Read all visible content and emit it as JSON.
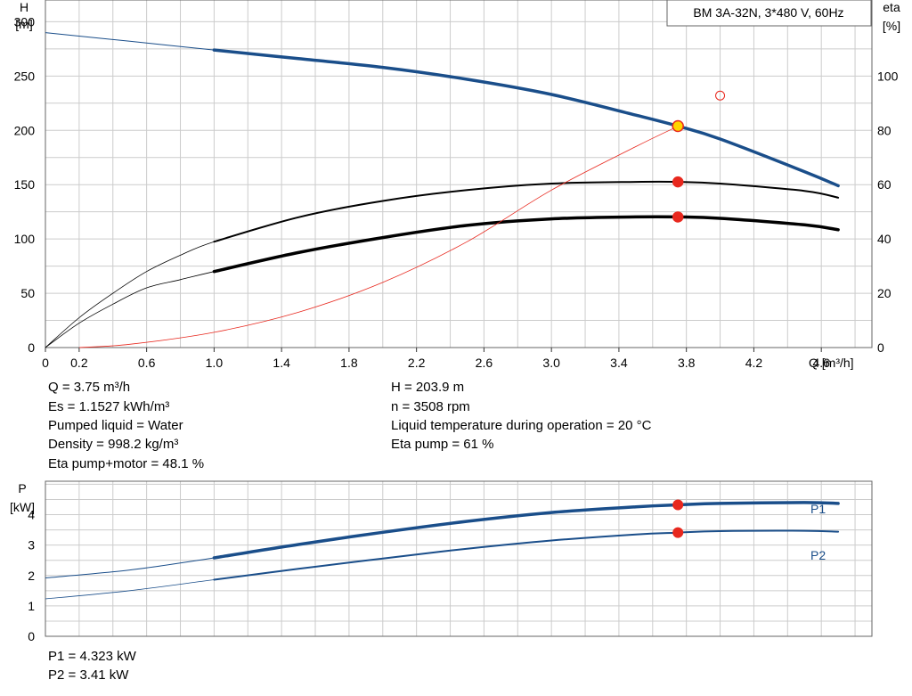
{
  "chart_data": [
    {
      "type": "line",
      "title": "BM 3A-32N, 3*480 V, 60Hz",
      "xlabel": "Q [m³/h]",
      "ylabel_left": [
        "H",
        "[m]"
      ],
      "ylabel_right": [
        "eta",
        "[%]"
      ],
      "xlim": [
        0,
        4.9
      ],
      "ylim_left": [
        0,
        320
      ],
      "ylim_right": [
        0,
        128
      ],
      "grid": true,
      "x_ticks": [
        {
          "v": 0,
          "label": "0"
        },
        {
          "v": 0.2,
          "label": "0.2"
        },
        {
          "v": 0.6,
          "label": "0.6"
        },
        {
          "v": 1.0,
          "label": "1.0"
        },
        {
          "v": 1.4,
          "label": "1.4"
        },
        {
          "v": 1.8,
          "label": "1.8"
        },
        {
          "v": 2.2,
          "label": "2.2"
        },
        {
          "v": 2.6,
          "label": "2.6"
        },
        {
          "v": 3.0,
          "label": "3.0"
        },
        {
          "v": 3.4,
          "label": "3.4"
        },
        {
          "v": 3.8,
          "label": "3.8"
        },
        {
          "v": 4.2,
          "label": "4.2"
        },
        {
          "v": 4.6,
          "label": "4.6"
        }
      ],
      "y_ticks_left": [
        0,
        50,
        100,
        150,
        200,
        250,
        300
      ],
      "y_ticks_right": [
        0,
        20,
        40,
        60,
        80,
        100
      ],
      "series": [
        {
          "axis": "left",
          "color": "#1a4e8a",
          "x": [
            0,
            0.5,
            1.0,
            1.5,
            2.0,
            2.5,
            3.0,
            3.5,
            3.75,
            4.0,
            4.5,
            4.7
          ],
          "y": [
            290,
            282,
            274,
            266,
            258,
            247,
            233,
            214,
            203.9,
            192,
            162,
            149
          ],
          "operating_range": [
            1.0,
            4.7
          ]
        },
        {
          "axis": "right",
          "color": "#000000",
          "x": [
            0,
            0.2,
            0.4,
            0.6,
            0.8,
            1.0,
            1.5,
            2.0,
            2.5,
            3.0,
            3.5,
            3.75,
            4.0,
            4.5,
            4.7
          ],
          "y": [
            0,
            11,
            20,
            28,
            34,
            39,
            48,
            54,
            58,
            60.4,
            61,
            61,
            60.4,
            57.7,
            55.2
          ],
          "operating_range": [
            1.0,
            4.7
          ]
        },
        {
          "axis": "right",
          "color": "#000000",
          "x": [
            0,
            0.2,
            0.4,
            0.6,
            0.8,
            1.0,
            1.5,
            2.0,
            2.5,
            3.0,
            3.5,
            3.75,
            4.0,
            4.5,
            4.7
          ],
          "y": [
            0,
            9,
            16,
            22,
            25,
            28,
            35,
            40.5,
            45,
            47.4,
            48.1,
            48.1,
            47.6,
            45.2,
            43.4
          ],
          "operating_range": [
            1.0,
            4.7
          ]
        },
        {
          "axis": "right",
          "color": "#e8281e",
          "x": [
            0.2,
            0.5,
            1.0,
            1.5,
            2.0,
            2.5,
            3.0,
            3.5,
            3.75
          ],
          "y": [
            0,
            1.2,
            5.6,
            13,
            24,
            39,
            58,
            74,
            81.5
          ]
        }
      ],
      "points": [
        {
          "axis": "left",
          "x": 3.75,
          "y": 203.9,
          "fill": "#ffd400",
          "stroke": "#e8281e"
        },
        {
          "axis": "right",
          "x": 3.75,
          "y": 61,
          "fill": "#e8281e",
          "stroke": "#e8281e"
        },
        {
          "axis": "right",
          "x": 3.75,
          "y": 48.1,
          "fill": "#e8281e",
          "stroke": "#e8281e"
        },
        {
          "axis": "left",
          "x": 4.0,
          "y": 232,
          "fill": "none",
          "stroke": "#e8281e"
        }
      ]
    },
    {
      "type": "line",
      "ylabel": [
        "P",
        "[kW]"
      ],
      "xlim": [
        0,
        4.9
      ],
      "ylim": [
        0,
        5.1
      ],
      "y_ticks": [
        0,
        1,
        2,
        3,
        4
      ],
      "grid": true,
      "series": [
        {
          "name": "P1",
          "color": "#1a4e8a",
          "x": [
            0,
            0.5,
            1.0,
            1.5,
            2.0,
            2.5,
            3.0,
            3.5,
            3.75,
            4.0,
            4.5,
            4.7
          ],
          "y": [
            1.92,
            2.18,
            2.58,
            3.02,
            3.42,
            3.78,
            4.07,
            4.26,
            4.323,
            4.37,
            4.4,
            4.37
          ],
          "operating_range": [
            1.0,
            4.7
          ]
        },
        {
          "name": "P2",
          "color": "#1a4e8a",
          "x": [
            0,
            0.5,
            1.0,
            1.5,
            2.0,
            2.5,
            3.0,
            3.5,
            3.75,
            4.0,
            4.5,
            4.7
          ],
          "y": [
            1.23,
            1.5,
            1.86,
            2.22,
            2.56,
            2.88,
            3.15,
            3.35,
            3.41,
            3.46,
            3.47,
            3.44
          ],
          "operating_range": [
            1.0,
            4.7
          ]
        }
      ],
      "points": [
        {
          "x": 3.75,
          "y": 4.323,
          "fill": "#e8281e",
          "stroke": "#e8281e"
        },
        {
          "x": 3.75,
          "y": 3.41,
          "fill": "#e8281e",
          "stroke": "#e8281e"
        }
      ]
    }
  ],
  "info": {
    "left": [
      "Q = 3.75 m³/h",
      "Es = 1.1527 kWh/m³",
      "Pumped liquid = Water",
      "Density = 998.2 kg/m³",
      "Eta pump+motor = 48.1 %"
    ],
    "right": [
      "H = 203.9 m",
      "n = 3508 rpm",
      "Liquid temperature during operation = 20 °C",
      "Eta pump = 61 %"
    ],
    "power": [
      "P1 = 4.323 kW",
      "P2 = 3.41 kW"
    ]
  },
  "colors": {
    "curve_blue": "#1a4e8a",
    "duty_red": "#e8281e",
    "duty_yellow": "#ffd400",
    "grid": "#cccccc"
  }
}
